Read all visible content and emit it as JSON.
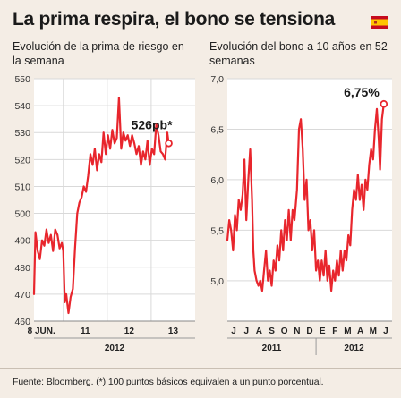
{
  "headline": "La prima respira, el bono se tensiona",
  "footer": "Fuente: Bloomberg. (*) 100 puntos básicos equivalen a un punto porcentual.",
  "colors": {
    "background": "#f4ede5",
    "panel": "#ffffff",
    "line": "#e8262d",
    "grid": "#d9d9d9",
    "text": "#1a1a1a"
  },
  "icons": {
    "flag": "spain-flag-icon"
  },
  "chart_data": [
    {
      "type": "line",
      "title": "Evolución de la prima de riesgo en la semana",
      "xlabel": "2012",
      "ylabel": "",
      "ylim": [
        460,
        550
      ],
      "yticks": [
        460,
        470,
        480,
        490,
        500,
        510,
        520,
        530,
        540,
        550
      ],
      "ytick_labels": [
        "460",
        "470",
        "480",
        "490",
        "500",
        "510",
        "520",
        "530",
        "540",
        "550"
      ],
      "xticks": [
        {
          "pos": 0.5,
          "label": "8 JUN."
        },
        {
          "pos": 3.5,
          "label": "11"
        },
        {
          "pos": 6.5,
          "label": "12"
        },
        {
          "pos": 9.5,
          "label": "13"
        }
      ],
      "xlim": [
        0,
        11
      ],
      "xdividers": [
        2,
        5,
        8
      ],
      "grid": true,
      "annotation": {
        "text": "526pb*",
        "value": 526
      },
      "series": [
        {
          "values": [
            {
              "x": 0.0,
              "y": 470
            },
            {
              "x": 0.1,
              "y": 493
            },
            {
              "x": 0.25,
              "y": 486
            },
            {
              "x": 0.4,
              "y": 483
            },
            {
              "x": 0.55,
              "y": 490
            },
            {
              "x": 0.7,
              "y": 488
            },
            {
              "x": 0.85,
              "y": 494
            },
            {
              "x": 1.0,
              "y": 489
            },
            {
              "x": 1.15,
              "y": 492
            },
            {
              "x": 1.3,
              "y": 486
            },
            {
              "x": 1.45,
              "y": 494
            },
            {
              "x": 1.6,
              "y": 492
            },
            {
              "x": 1.75,
              "y": 487
            },
            {
              "x": 1.9,
              "y": 489
            },
            {
              "x": 2.0,
              "y": 486
            },
            {
              "x": 2.1,
              "y": 467
            },
            {
              "x": 2.2,
              "y": 470
            },
            {
              "x": 2.35,
              "y": 463
            },
            {
              "x": 2.5,
              "y": 469
            },
            {
              "x": 2.65,
              "y": 472
            },
            {
              "x": 2.8,
              "y": 487
            },
            {
              "x": 2.95,
              "y": 500
            },
            {
              "x": 3.1,
              "y": 504
            },
            {
              "x": 3.25,
              "y": 506
            },
            {
              "x": 3.4,
              "y": 510
            },
            {
              "x": 3.55,
              "y": 508
            },
            {
              "x": 3.7,
              "y": 514
            },
            {
              "x": 3.85,
              "y": 522
            },
            {
              "x": 4.0,
              "y": 518
            },
            {
              "x": 4.15,
              "y": 524
            },
            {
              "x": 4.3,
              "y": 516
            },
            {
              "x": 4.45,
              "y": 522
            },
            {
              "x": 4.6,
              "y": 519
            },
            {
              "x": 4.75,
              "y": 530
            },
            {
              "x": 4.9,
              "y": 522
            },
            {
              "x": 5.05,
              "y": 529
            },
            {
              "x": 5.2,
              "y": 524
            },
            {
              "x": 5.35,
              "y": 531
            },
            {
              "x": 5.5,
              "y": 526
            },
            {
              "x": 5.65,
              "y": 528
            },
            {
              "x": 5.8,
              "y": 543
            },
            {
              "x": 5.95,
              "y": 524
            },
            {
              "x": 6.1,
              "y": 530
            },
            {
              "x": 6.25,
              "y": 527
            },
            {
              "x": 6.4,
              "y": 529
            },
            {
              "x": 6.55,
              "y": 525
            },
            {
              "x": 6.7,
              "y": 529
            },
            {
              "x": 6.85,
              "y": 526
            },
            {
              "x": 7.0,
              "y": 522
            },
            {
              "x": 7.15,
              "y": 525
            },
            {
              "x": 7.3,
              "y": 518
            },
            {
              "x": 7.45,
              "y": 523
            },
            {
              "x": 7.6,
              "y": 520
            },
            {
              "x": 7.75,
              "y": 527
            },
            {
              "x": 7.9,
              "y": 518
            },
            {
              "x": 8.05,
              "y": 524
            },
            {
              "x": 8.2,
              "y": 522
            },
            {
              "x": 8.35,
              "y": 533
            },
            {
              "x": 8.5,
              "y": 529
            },
            {
              "x": 8.65,
              "y": 523
            },
            {
              "x": 8.8,
              "y": 522
            },
            {
              "x": 8.95,
              "y": 520
            },
            {
              "x": 9.1,
              "y": 530
            },
            {
              "x": 9.2,
              "y": 526
            }
          ]
        }
      ]
    },
    {
      "type": "line",
      "title": "Evolución del bono a 10 años en 52 semanas",
      "xlabel": "",
      "ylabel": "",
      "ylim": [
        4.6,
        7.0
      ],
      "yticks": [
        5.0,
        5.5,
        6.0,
        6.5,
        7.0
      ],
      "ytick_labels": [
        "5,0",
        "5,5",
        "6,0",
        "6,5",
        "7,0"
      ],
      "xticks": [
        {
          "pos": 0.5,
          "label": "J"
        },
        {
          "pos": 1.5,
          "label": "J"
        },
        {
          "pos": 2.5,
          "label": "A"
        },
        {
          "pos": 3.5,
          "label": "S"
        },
        {
          "pos": 4.5,
          "label": "O"
        },
        {
          "pos": 5.5,
          "label": "N"
        },
        {
          "pos": 6.5,
          "label": "D"
        },
        {
          "pos": 7.5,
          "label": "E"
        },
        {
          "pos": 8.5,
          "label": "F"
        },
        {
          "pos": 9.5,
          "label": "M"
        },
        {
          "pos": 10.5,
          "label": "A"
        },
        {
          "pos": 11.5,
          "label": "M"
        },
        {
          "pos": 12.5,
          "label": "J"
        }
      ],
      "xlim": [
        0,
        13
      ],
      "year_labels": [
        {
          "pos": 3.5,
          "label": "2011"
        },
        {
          "pos": 10.0,
          "label": "2012"
        }
      ],
      "grid": true,
      "annotation": {
        "text": "6,75%",
        "value": 6.75
      },
      "series": [
        {
          "values": [
            {
              "x": 0.0,
              "y": 5.4
            },
            {
              "x": 0.15,
              "y": 5.6
            },
            {
              "x": 0.3,
              "y": 5.5
            },
            {
              "x": 0.45,
              "y": 5.3
            },
            {
              "x": 0.6,
              "y": 5.65
            },
            {
              "x": 0.75,
              "y": 5.5
            },
            {
              "x": 0.9,
              "y": 5.8
            },
            {
              "x": 1.05,
              "y": 5.7
            },
            {
              "x": 1.2,
              "y": 5.85
            },
            {
              "x": 1.35,
              "y": 6.2
            },
            {
              "x": 1.5,
              "y": 5.6
            },
            {
              "x": 1.65,
              "y": 6.0
            },
            {
              "x": 1.8,
              "y": 6.3
            },
            {
              "x": 1.95,
              "y": 5.8
            },
            {
              "x": 2.05,
              "y": 5.3
            },
            {
              "x": 2.15,
              "y": 5.1
            },
            {
              "x": 2.3,
              "y": 5.0
            },
            {
              "x": 2.45,
              "y": 4.95
            },
            {
              "x": 2.6,
              "y": 5.0
            },
            {
              "x": 2.75,
              "y": 4.9
            },
            {
              "x": 2.9,
              "y": 5.1
            },
            {
              "x": 3.05,
              "y": 5.3
            },
            {
              "x": 3.2,
              "y": 5.0
            },
            {
              "x": 3.35,
              "y": 5.1
            },
            {
              "x": 3.5,
              "y": 4.95
            },
            {
              "x": 3.65,
              "y": 5.2
            },
            {
              "x": 3.8,
              "y": 5.1
            },
            {
              "x": 3.95,
              "y": 5.35
            },
            {
              "x": 4.1,
              "y": 5.2
            },
            {
              "x": 4.25,
              "y": 5.5
            },
            {
              "x": 4.4,
              "y": 5.3
            },
            {
              "x": 4.55,
              "y": 5.6
            },
            {
              "x": 4.7,
              "y": 5.4
            },
            {
              "x": 4.85,
              "y": 5.7
            },
            {
              "x": 5.0,
              "y": 5.4
            },
            {
              "x": 5.15,
              "y": 5.7
            },
            {
              "x": 5.3,
              "y": 5.6
            },
            {
              "x": 5.5,
              "y": 5.9
            },
            {
              "x": 5.65,
              "y": 6.5
            },
            {
              "x": 5.8,
              "y": 6.6
            },
            {
              "x": 5.95,
              "y": 6.3
            },
            {
              "x": 6.1,
              "y": 5.8
            },
            {
              "x": 6.25,
              "y": 6.0
            },
            {
              "x": 6.4,
              "y": 5.5
            },
            {
              "x": 6.55,
              "y": 5.6
            },
            {
              "x": 6.7,
              "y": 5.3
            },
            {
              "x": 6.85,
              "y": 5.5
            },
            {
              "x": 7.0,
              "y": 5.1
            },
            {
              "x": 7.15,
              "y": 5.2
            },
            {
              "x": 7.3,
              "y": 5.0
            },
            {
              "x": 7.45,
              "y": 5.2
            },
            {
              "x": 7.6,
              "y": 5.05
            },
            {
              "x": 7.75,
              "y": 5.3
            },
            {
              "x": 7.9,
              "y": 5.0
            },
            {
              "x": 8.05,
              "y": 5.15
            },
            {
              "x": 8.2,
              "y": 4.9
            },
            {
              "x": 8.35,
              "y": 5.1
            },
            {
              "x": 8.5,
              "y": 5.0
            },
            {
              "x": 8.65,
              "y": 5.2
            },
            {
              "x": 8.8,
              "y": 5.05
            },
            {
              "x": 8.95,
              "y": 5.3
            },
            {
              "x": 9.1,
              "y": 5.1
            },
            {
              "x": 9.25,
              "y": 5.3
            },
            {
              "x": 9.4,
              "y": 5.2
            },
            {
              "x": 9.55,
              "y": 5.45
            },
            {
              "x": 9.7,
              "y": 5.35
            },
            {
              "x": 9.85,
              "y": 5.7
            },
            {
              "x": 10.0,
              "y": 5.9
            },
            {
              "x": 10.15,
              "y": 5.8
            },
            {
              "x": 10.3,
              "y": 6.05
            },
            {
              "x": 10.45,
              "y": 5.8
            },
            {
              "x": 10.6,
              "y": 5.95
            },
            {
              "x": 10.75,
              "y": 5.7
            },
            {
              "x": 10.9,
              "y": 6.0
            },
            {
              "x": 11.05,
              "y": 5.9
            },
            {
              "x": 11.2,
              "y": 6.15
            },
            {
              "x": 11.35,
              "y": 6.3
            },
            {
              "x": 11.5,
              "y": 6.2
            },
            {
              "x": 11.65,
              "y": 6.5
            },
            {
              "x": 11.8,
              "y": 6.7
            },
            {
              "x": 11.95,
              "y": 6.4
            },
            {
              "x": 12.05,
              "y": 6.1
            },
            {
              "x": 12.2,
              "y": 6.6
            },
            {
              "x": 12.35,
              "y": 6.75
            }
          ]
        }
      ]
    }
  ]
}
